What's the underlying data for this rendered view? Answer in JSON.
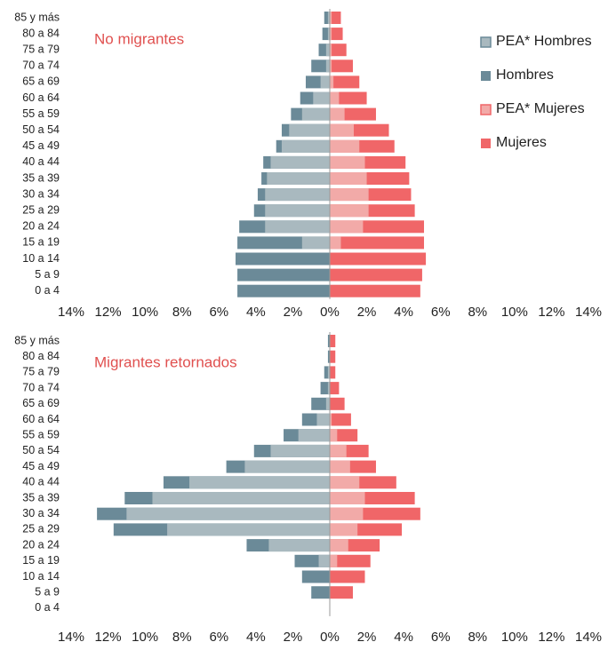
{
  "chart_data": [
    {
      "type": "pyramid",
      "title": "No migrantes",
      "legend": "top-right",
      "categories": [
        "85 y más",
        "80 a 84",
        "75 a 79",
        "70 a 74",
        "65 a 69",
        "60 a 64",
        "55 a 59",
        "50 a 54",
        "45 a 49",
        "40 a 44",
        "35 a 39",
        "30 a 34",
        "25 a 29",
        "20 a 24",
        "15 a 19",
        "10 a 14",
        "5 a 9",
        "0 a 4"
      ],
      "series": [
        {
          "name": "PEA* Hombres",
          "color": "#a9b9bf",
          "side": "left",
          "values": [
            0.1,
            0.1,
            0.2,
            0.2,
            0.5,
            0.9,
            1.5,
            2.2,
            2.6,
            3.2,
            3.4,
            3.5,
            3.5,
            3.5,
            1.5,
            0,
            0,
            0
          ]
        },
        {
          "name": "Hombres",
          "color": "#6b8a98",
          "side": "left",
          "values": [
            0.3,
            0.4,
            0.6,
            1.0,
            1.3,
            1.6,
            2.1,
            2.6,
            2.9,
            3.6,
            3.7,
            3.9,
            4.1,
            4.9,
            5.0,
            5.1,
            5.0,
            5.0
          ]
        },
        {
          "name": "PEA* Mujeres",
          "color": "#f2aaa8",
          "side": "right",
          "values": [
            0.1,
            0.1,
            0.1,
            0.1,
            0.2,
            0.5,
            0.8,
            1.3,
            1.6,
            1.9,
            2.0,
            2.1,
            2.1,
            1.8,
            0.6,
            0,
            0,
            0
          ]
        },
        {
          "name": "Mujeres",
          "color": "#f06668",
          "side": "right",
          "values": [
            0.6,
            0.7,
            0.9,
            1.25,
            1.6,
            2.0,
            2.5,
            3.2,
            3.5,
            4.1,
            4.3,
            4.4,
            4.6,
            5.1,
            5.1,
            5.2,
            5.0,
            4.9
          ]
        }
      ],
      "xlim": [
        -14,
        14
      ],
      "xticks": [
        {
          "value": -14,
          "label": "14%"
        },
        {
          "value": -12,
          "label": "12%"
        },
        {
          "value": -10,
          "label": "10%"
        },
        {
          "value": -8,
          "label": "8%"
        },
        {
          "value": -6,
          "label": "6%"
        },
        {
          "value": -4,
          "label": "4%"
        },
        {
          "value": -2,
          "label": "2%"
        },
        {
          "value": 0,
          "label": "0%"
        },
        {
          "value": 2,
          "label": "2%"
        },
        {
          "value": 4,
          "label": "4%"
        },
        {
          "value": 6,
          "label": "6%"
        },
        {
          "value": 8,
          "label": "8%"
        },
        {
          "value": 10,
          "label": "10%"
        },
        {
          "value": 12,
          "label": "12%"
        },
        {
          "value": 14,
          "label": "14%"
        }
      ]
    },
    {
      "type": "pyramid",
      "title": "Migrantes retornados",
      "categories": [
        "85 y más",
        "80 a 84",
        "75 a 79",
        "70 a 74",
        "65 a 69",
        "60 a 64",
        "55 a 59",
        "50 a 54",
        "45 a 49",
        "40 a 44",
        "35 a 39",
        "30 a 34",
        "25 a 29",
        "20 a 24",
        "15 a 19",
        "10 a 14",
        "5 a 9",
        "0 a 4"
      ],
      "series": [
        {
          "color": "#a9b9bf",
          "side": "left",
          "values": [
            0,
            0,
            0.1,
            0.1,
            0.2,
            0.7,
            1.7,
            3.2,
            4.6,
            7.6,
            9.6,
            11.0,
            8.8,
            3.3,
            0.6,
            0,
            0,
            0
          ]
        },
        {
          "color": "#6b8a98",
          "side": "left",
          "values": [
            0.1,
            0.1,
            0.3,
            0.5,
            1.0,
            1.5,
            2.5,
            4.1,
            5.6,
            9.0,
            11.1,
            12.6,
            11.7,
            4.5,
            1.9,
            1.5,
            1.0,
            0
          ]
        },
        {
          "color": "#f2aaa8",
          "side": "right",
          "values": [
            0,
            0,
            0,
            0,
            0,
            0.1,
            0.4,
            0.9,
            1.1,
            1.6,
            1.9,
            1.8,
            1.5,
            1.0,
            0.4,
            0,
            0,
            0
          ]
        },
        {
          "color": "#f06668",
          "side": "right",
          "values": [
            0.3,
            0.3,
            0.3,
            0.5,
            0.8,
            1.15,
            1.5,
            2.1,
            2.5,
            3.6,
            4.6,
            4.9,
            3.9,
            2.7,
            2.2,
            1.9,
            1.25,
            0
          ]
        }
      ],
      "xlim": [
        -14,
        14
      ],
      "xticks": [
        {
          "value": -14,
          "label": "14%"
        },
        {
          "value": -12,
          "label": "12%"
        },
        {
          "value": -10,
          "label": "10%"
        },
        {
          "value": -8,
          "label": "8%"
        },
        {
          "value": -6,
          "label": "6%"
        },
        {
          "value": -4,
          "label": "4%"
        },
        {
          "value": -2,
          "label": "2%"
        },
        {
          "value": 0,
          "label": "0%"
        },
        {
          "value": 2,
          "label": "2%"
        },
        {
          "value": 4,
          "label": "4%"
        },
        {
          "value": 6,
          "label": "6%"
        },
        {
          "value": 8,
          "label": "8%"
        },
        {
          "value": 10,
          "label": "10%"
        },
        {
          "value": 12,
          "label": "12%"
        },
        {
          "value": 14,
          "label": "14%"
        }
      ]
    }
  ]
}
